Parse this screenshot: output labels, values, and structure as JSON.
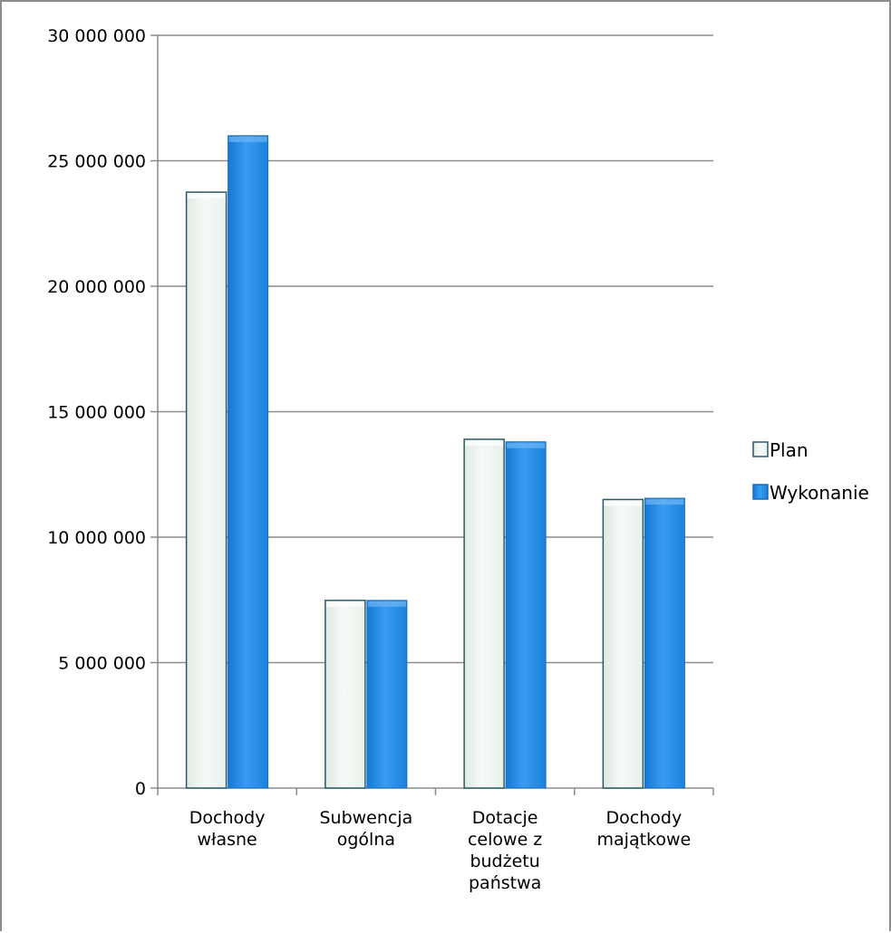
{
  "chart_data": {
    "type": "bar",
    "title": "",
    "xlabel": "",
    "ylabel": "",
    "categories": [
      [
        "Dochody",
        "własne"
      ],
      [
        "Subwencja",
        "ogólna"
      ],
      [
        "Dotacje",
        "celowe z",
        "budżetu",
        "państwa"
      ],
      [
        "Dochody",
        "majątkowe"
      ]
    ],
    "series": [
      {
        "name": "Plan",
        "values": [
          23750000,
          7480000,
          13900000,
          11500000
        ],
        "color": "#eef4ef"
      },
      {
        "name": "Wykonanie",
        "values": [
          26000000,
          7480000,
          13800000,
          11550000
        ],
        "color": "#2c8de0"
      }
    ],
    "ylim": [
      0,
      30000000
    ],
    "yticks": [
      {
        "value": 0,
        "label": "0"
      },
      {
        "value": 5000000,
        "label": "5 000 000"
      },
      {
        "value": 10000000,
        "label": "10 000 000"
      },
      {
        "value": 15000000,
        "label": "15 000 000"
      },
      {
        "value": 20000000,
        "label": "20 000 000"
      },
      {
        "value": 25000000,
        "label": "25 000 000"
      },
      {
        "value": 30000000,
        "label": "30 000 000"
      }
    ],
    "grid": true,
    "legend_position": "right"
  }
}
